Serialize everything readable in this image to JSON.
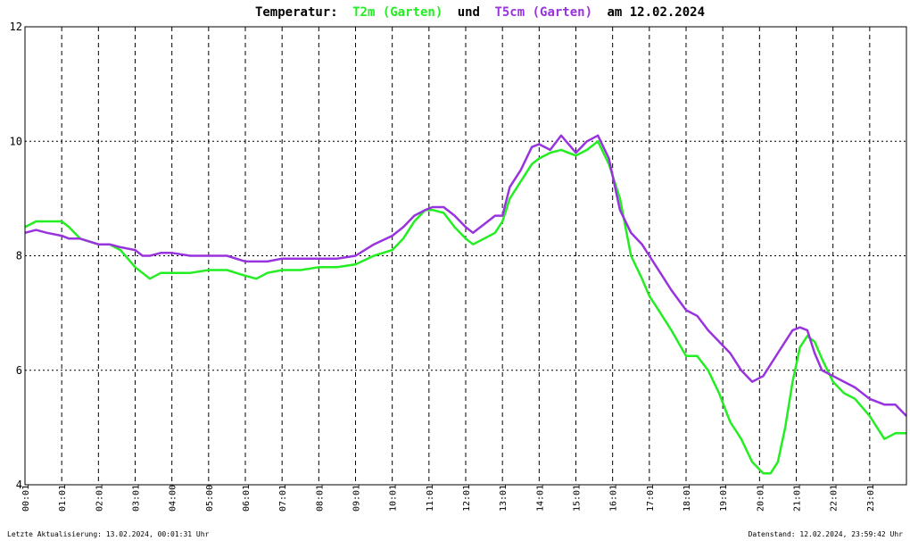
{
  "title": {
    "prefix": "Temperatur:",
    "series1": "T2m (Garten)",
    "mid": "und",
    "series2": "T5cm (Garten)",
    "suffix": "am 12.02.2024"
  },
  "footer": {
    "left": "Letzte Aktualisierung: 13.02.2024, 00:01:31 Uhr",
    "right": "Datenstand: 12.02.2024, 23:59:42 Uhr"
  },
  "colors": {
    "t2m": "#22ee22",
    "t5cm": "#9933dd",
    "grid": "#000000",
    "frame": "#000000"
  },
  "chart_data": {
    "type": "line",
    "title": "Temperatur: T2m (Garten) und T5cm (Garten) am 12.02.2024",
    "xlabel": "",
    "ylabel": "",
    "xlim": [
      0,
      24
    ],
    "ylim": [
      4,
      12
    ],
    "y_ticks": [
      4,
      6,
      8,
      10,
      12
    ],
    "x_tick_labels": [
      "00:01",
      "01:01",
      "02:01",
      "03:01",
      "04:00",
      "05:00",
      "06:01",
      "07:01",
      "08:01",
      "09:01",
      "10:01",
      "11:01",
      "12:01",
      "13:01",
      "14:01",
      "15:01",
      "16:01",
      "17:01",
      "18:01",
      "19:01",
      "20:01",
      "21:01",
      "22:01",
      "23:01"
    ],
    "grid": true,
    "series": [
      {
        "name": "T2m (Garten)",
        "x": [
          0,
          0.3,
          0.6,
          1.0,
          1.2,
          1.5,
          2.0,
          2.3,
          2.6,
          3.0,
          3.2,
          3.4,
          3.7,
          4.0,
          4.5,
          5.0,
          5.5,
          6.0,
          6.3,
          6.6,
          7.0,
          7.5,
          8.0,
          8.5,
          9.0,
          9.5,
          10.0,
          10.3,
          10.6,
          10.9,
          11.1,
          11.4,
          11.7,
          12.0,
          12.2,
          12.5,
          12.8,
          13.0,
          13.2,
          13.5,
          13.8,
          14.0,
          14.3,
          14.6,
          15.0,
          15.3,
          15.6,
          15.9,
          16.2,
          16.5,
          16.8,
          17.0,
          17.3,
          17.6,
          18.0,
          18.3,
          18.6,
          18.9,
          19.2,
          19.5,
          19.8,
          20.1,
          20.3,
          20.5,
          20.7,
          20.9,
          21.1,
          21.3,
          21.5,
          21.7,
          22.0,
          22.3,
          22.6,
          23.0,
          23.4,
          23.7,
          24.0
        ],
        "values": [
          8.5,
          8.6,
          8.6,
          8.6,
          8.5,
          8.3,
          8.2,
          8.2,
          8.1,
          7.8,
          7.7,
          7.6,
          7.7,
          7.7,
          7.7,
          7.75,
          7.75,
          7.65,
          7.6,
          7.7,
          7.75,
          7.75,
          7.8,
          7.8,
          7.85,
          8.0,
          8.1,
          8.3,
          8.6,
          8.8,
          8.8,
          8.75,
          8.5,
          8.3,
          8.2,
          8.3,
          8.4,
          8.6,
          9.0,
          9.3,
          9.6,
          9.7,
          9.8,
          9.85,
          9.75,
          9.85,
          10.0,
          9.6,
          9.0,
          8.0,
          7.6,
          7.3,
          7.0,
          6.7,
          6.25,
          6.25,
          6.0,
          5.6,
          5.1,
          4.8,
          4.4,
          4.2,
          4.2,
          4.4,
          5.0,
          5.8,
          6.4,
          6.6,
          6.5,
          6.2,
          5.8,
          5.6,
          5.5,
          5.2,
          4.8,
          4.9,
          4.9
        ]
      },
      {
        "name": "T5cm (Garten)",
        "x": [
          0,
          0.3,
          0.6,
          1.0,
          1.2,
          1.5,
          2.0,
          2.3,
          2.6,
          3.0,
          3.2,
          3.4,
          3.7,
          4.0,
          4.5,
          5.0,
          5.5,
          6.0,
          6.3,
          6.6,
          7.0,
          7.5,
          8.0,
          8.5,
          9.0,
          9.5,
          10.0,
          10.3,
          10.6,
          10.9,
          11.1,
          11.4,
          11.7,
          12.0,
          12.2,
          12.5,
          12.8,
          13.0,
          13.2,
          13.5,
          13.8,
          14.0,
          14.3,
          14.6,
          15.0,
          15.3,
          15.6,
          15.9,
          16.2,
          16.5,
          16.8,
          17.0,
          17.3,
          17.6,
          18.0,
          18.3,
          18.6,
          18.9,
          19.2,
          19.5,
          19.8,
          20.1,
          20.3,
          20.5,
          20.7,
          20.9,
          21.1,
          21.3,
          21.5,
          21.7,
          22.0,
          22.3,
          22.6,
          23.0,
          23.4,
          23.7,
          24.0
        ],
        "values": [
          8.4,
          8.45,
          8.4,
          8.35,
          8.3,
          8.3,
          8.2,
          8.2,
          8.15,
          8.1,
          8.0,
          8.0,
          8.05,
          8.05,
          8.0,
          8.0,
          8.0,
          7.9,
          7.9,
          7.9,
          7.95,
          7.95,
          7.95,
          7.95,
          8.0,
          8.2,
          8.35,
          8.5,
          8.7,
          8.8,
          8.85,
          8.85,
          8.7,
          8.5,
          8.4,
          8.55,
          8.7,
          8.7,
          9.2,
          9.5,
          9.9,
          9.95,
          9.85,
          10.1,
          9.8,
          10.0,
          10.1,
          9.7,
          8.8,
          8.4,
          8.2,
          8.0,
          7.7,
          7.4,
          7.05,
          6.95,
          6.7,
          6.5,
          6.3,
          6.0,
          5.8,
          5.9,
          6.1,
          6.3,
          6.5,
          6.7,
          6.75,
          6.7,
          6.3,
          6.0,
          5.9,
          5.8,
          5.7,
          5.5,
          5.4,
          5.4,
          5.2
        ]
      }
    ]
  }
}
